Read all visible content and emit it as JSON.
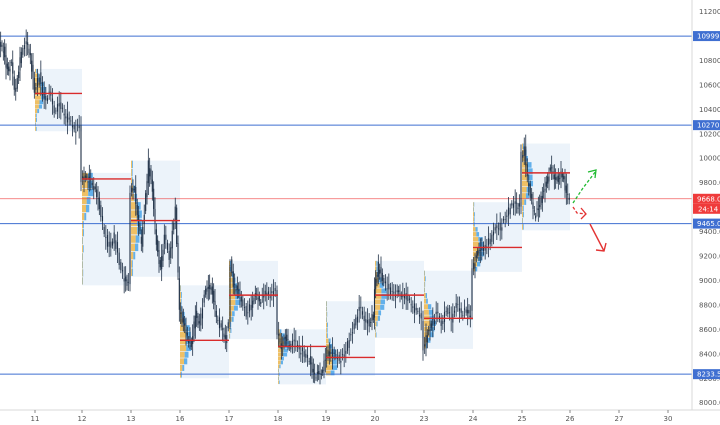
{
  "chart_data": {
    "type": "candlestick",
    "y_ticks": [
      "11200.0",
      "11000.0",
      "10800.0",
      "10600.0",
      "10400.0",
      "10200.0",
      "10000.0",
      "9800.0",
      "9600.0",
      "9400.0",
      "9200.0",
      "9000.0",
      "8800.0",
      "8600.0",
      "8400.0",
      "8200.0",
      "8000.0"
    ],
    "y_tick_values": [
      11200,
      11000,
      10800,
      10600,
      10400,
      10200,
      10000,
      9800,
      9600,
      9400,
      9200,
      9000,
      8800,
      8600,
      8400,
      8200,
      8000
    ],
    "x_ticks": [
      "11",
      "12",
      "13",
      "16",
      "17",
      "18",
      "19",
      "20",
      "23",
      "24",
      "25",
      "26",
      "27",
      "30"
    ],
    "ylim": [
      7900,
      11330
    ],
    "grid": false,
    "horizontal_levels": [
      {
        "label": "10999.0",
        "value": 10999,
        "color": "#3f6fd1"
      },
      {
        "label": "10270.5",
        "value": 10270.5,
        "color": "#3f6fd1"
      },
      {
        "label": "9465.0",
        "value": 9465,
        "color": "#3f6fd1"
      },
      {
        "label": "8233.5",
        "value": 8233.5,
        "color": "#3f6fd1"
      }
    ],
    "current_price": {
      "label": "9668.0",
      "value": 9668,
      "color": "#ef3b3b",
      "countdown": "24:14"
    },
    "volume_profiles": [
      {
        "from": "11",
        "to": "12",
        "poc": 10530,
        "high": 10730,
        "low": 10220
      },
      {
        "from": "12",
        "to": "13",
        "poc": 9830,
        "high": 9880,
        "low": 8960
      },
      {
        "from": "13",
        "to": "14",
        "poc": 9490,
        "high": 9980,
        "low": 9030
      },
      {
        "from": "16",
        "to": "17",
        "poc": 8510,
        "high": 8960,
        "low": 8200
      },
      {
        "from": "17",
        "to": "18",
        "poc": 8880,
        "high": 9160,
        "low": 8520
      },
      {
        "from": "18",
        "to": "19",
        "poc": 8460,
        "high": 8600,
        "low": 8150
      },
      {
        "from": "19",
        "to": "20",
        "poc": 8370,
        "high": 8830,
        "low": 8220
      },
      {
        "from": "20",
        "to": "21",
        "poc": 8880,
        "high": 9160,
        "low": 8530
      },
      {
        "from": "23",
        "to": "24",
        "poc": 8690,
        "high": 9080,
        "low": 8440
      },
      {
        "from": "24",
        "to": "25",
        "poc": 9270,
        "high": 9640,
        "low": 9070
      },
      {
        "from": "25",
        "to": "26",
        "poc": 9880,
        "high": 10120,
        "low": 9410
      }
    ],
    "arrows": [
      {
        "color": "#22bb33",
        "direction": "up"
      },
      {
        "color": "#e33333",
        "direction": "down"
      }
    ]
  }
}
